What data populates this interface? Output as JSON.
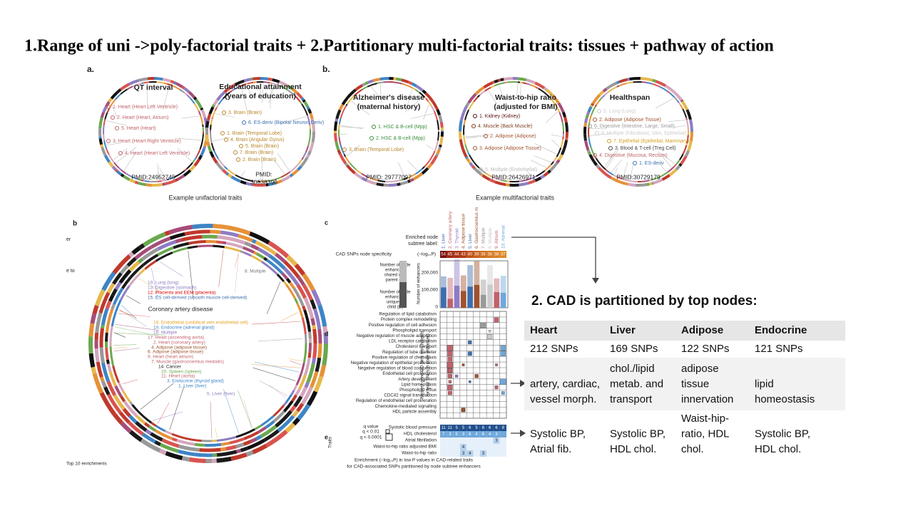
{
  "title": "1.Range of uni ->poly-factorial traits + 2.Partitionary multi-factorial traits: tissues + pathway of action",
  "top_figure": {
    "panel_labels": [
      "a.",
      "b."
    ],
    "circles": [
      {
        "title": [
          "QT interval"
        ],
        "labels": [
          "1. Heart (Heart Left Ventricle)",
          "2. Heart (Heart, Atrium)",
          "5. Heart (Heart)",
          "3. Heart (Heart Right Ventricle)",
          "4. Heart (Heart Left Ventricle)"
        ],
        "pmid": [
          "PMID:24952745"
        ]
      },
      {
        "title": [
          "Educational attainment",
          "(years of education)"
        ],
        "labels": [
          "3. Brain (Brain)",
          "6. ES-deriv (Bipolar Neuron Deriv)",
          "1. Brain (Temporal Lobe)",
          "4. Brain (Angular Gyrus)",
          "5. Brain (Brain)",
          "7. Brain (Brain)",
          "2. Brain (Brain)"
        ],
        "pmid": [
          "PMID:",
          "30038396"
        ]
      },
      {
        "title": [
          "Alzheimer's disease",
          "(maternal history)"
        ],
        "labels": [
          "1. HSC & B-cell (Mpp)",
          "2. HSC & B-cell (Mpp)",
          "3. Brain (Temporal Lobe)"
        ],
        "pmid": [
          "PMID: 29777097"
        ]
      },
      {
        "title": [
          "Waist-to-hip ratio",
          "(adjusted for BMI)"
        ],
        "labels": [
          "1. Kidney (Kidney)",
          "4. Muscle (Back Muscle)",
          "2. Adipose (Adipose)",
          "3. Adipose (Adipose Tissue)",
          "5. Multiple (Endothelial)"
        ],
        "pmid": [
          "PMID:26426971"
        ]
      },
      {
        "title": [
          "Healthspan"
        ],
        "labels": [
          "5. Lung (Lung)",
          "2. Adipose (Adipose Tissue)",
          "6. Digestive (Intestine, Large, Small)",
          "8. Multiple (Fibroblast, Skin, Epithelial)",
          "7. Epithelial (Epithelial, Mammary)",
          "3. Blood & T-cell (Treg Cell)",
          "4. Digestive (Mucosa, Rectum)",
          "1. ES-deriv"
        ],
        "pmid": [
          "PMID:30729179"
        ]
      }
    ],
    "captions": [
      "Example unifactorial traits",
      "Example multifactorial traits"
    ]
  },
  "cad_circle": {
    "panel_label": "b",
    "title": "Coronary artery disease",
    "edge_fragments": [
      "er",
      "e to"
    ],
    "labels": [
      "19. Lung (lung)",
      "13. Digestive (stomach)",
      "12. Placenta and EEM (placenta)",
      "15. ES cell-derived (smooth muscle cell-derived)",
      "8. Multiple",
      "18. Endothelial (umbilical vein endothelial cell)",
      "10. Endocrine (adrenal gland)",
      "16. Multiple",
      "17. Heart (ascending aorta)",
      "2. Heart (coronary artery)",
      "4. Adipose (adipose tissue)",
      "6. Adipose (adipose tissue)",
      "9. Heart (heart atrium)",
      "7. Muscle (gastrocnemius medialis)",
      "14. Cancer",
      "20. Spleen (spleen)",
      "11. Heart (aorta)",
      "3. Endocrine (thyroid gland)",
      "1. Liver (liver)",
      "5. Liver (liver)"
    ],
    "footer": "Top 10 enrichments"
  },
  "node_panel": {
    "panel_labels": [
      "c",
      "d",
      "e"
    ],
    "subtree_label": [
      "Enriched node",
      "subtree label:"
    ],
    "nodes": [
      "1. Liver",
      "2. Coronary artery",
      "3. Thyroid",
      "4. Adipose tissue",
      "5. Liver",
      "6. Gastrocnemius m",
      "7. Multiple",
      "8. Multiple",
      "9. Atrium",
      "10. Adrenal"
    ],
    "specificity_label": "CAD SNPs node specificity",
    "specificity_unit": "(−log₁₀P)",
    "specificity": [
      "54",
      "45",
      "44",
      "43",
      "40",
      "39",
      "38",
      "38",
      "38",
      "37"
    ],
    "shared_label": [
      "Number of node",
      "enhancers",
      "shared with",
      "parent (P)"
    ],
    "unique_label": [
      "Number of node",
      "enhancers",
      "unique to",
      "child (D)"
    ],
    "enhancer_axis": "Number of enhancers",
    "enhancer_ticks": [
      "200,000",
      "100,000",
      "0"
    ],
    "go_axis": [
      "Nearest gene GO term enrichments",
      "for lead SNPs in node enhancers"
    ],
    "go_terms": [
      "Regulation of lipid catabolism",
      "Protein complex remodelling",
      "Positive regulation of cell adhesion",
      "Phospholipid transport",
      "Negative regulation of muscle adaptation",
      "LDL receptor catabolism",
      "Cholesterol transport",
      "Regulation of tube diameter",
      "Positive regulation of chemotaxis",
      "Negative regulation of epithelial proliferation",
      "Negative regulation of blood coagulation",
      "Endothelial cell proliferation",
      "Artery development",
      "Lipid homeostasis",
      "Phospholipid efflux",
      "CDC42 signal transduction",
      "Regulation of endothelial cell proliferation",
      "Chemokine-mediated signalling",
      "HDL particle assembly"
    ],
    "q_legend": [
      "q value",
      "q < 0.01",
      "q < 0.0001"
    ],
    "traits_axis": "Traits",
    "traits": [
      "Systolic blood pressure",
      "HDL cholesterol",
      "Atrial fibrillation",
      "Waist-to-hip ratio adjusted BMI",
      "Waist-to-hip ratio"
    ],
    "trait_cells": [
      [
        "11",
        "11",
        "5",
        "5",
        "6",
        "5",
        "6",
        "6",
        "6",
        "8"
      ],
      [
        "7",
        "3",
        "5",
        "3",
        "6",
        "4",
        "6",
        "4",
        "3",
        null
      ],
      [
        null,
        null,
        null,
        null,
        null,
        null,
        null,
        null,
        "3",
        null
      ],
      [
        null,
        null,
        null,
        "4",
        null,
        null,
        null,
        null,
        null,
        null
      ],
      [
        null,
        null,
        null,
        "3",
        "4",
        null,
        "3",
        null,
        null,
        null
      ]
    ],
    "caption": [
      "Enrichment (−log₁₀P) in low P values in CAD-related traits",
      "for CAD-associated SNPs partitioned by node subtree enhancers"
    ]
  },
  "partition": {
    "heading": "2. CAD is partitioned by top nodes:",
    "header": [
      "Heart",
      "Liver",
      "Adipose",
      "Endocrine"
    ],
    "rows": [
      [
        [
          "212 SNPs"
        ],
        [
          "169 SNPs"
        ],
        [
          "122 SNPs"
        ],
        [
          "121 SNPs"
        ]
      ],
      [
        [
          "artery, cardiac,",
          "vessel morph."
        ],
        [
          "chol./lipid",
          "metab. and",
          "transport"
        ],
        [
          "adipose",
          "tissue",
          "innervation"
        ],
        [
          "lipid",
          "homeostasis"
        ]
      ],
      [
        [
          "Systolic BP,",
          "Atrial fib."
        ],
        [
          "Systolic BP,",
          "HDL chol."
        ],
        [
          "Waist-hip-",
          "ratio, HDL",
          "chol."
        ],
        [
          "Systolic BP,",
          "HDL chol."
        ]
      ]
    ]
  }
}
